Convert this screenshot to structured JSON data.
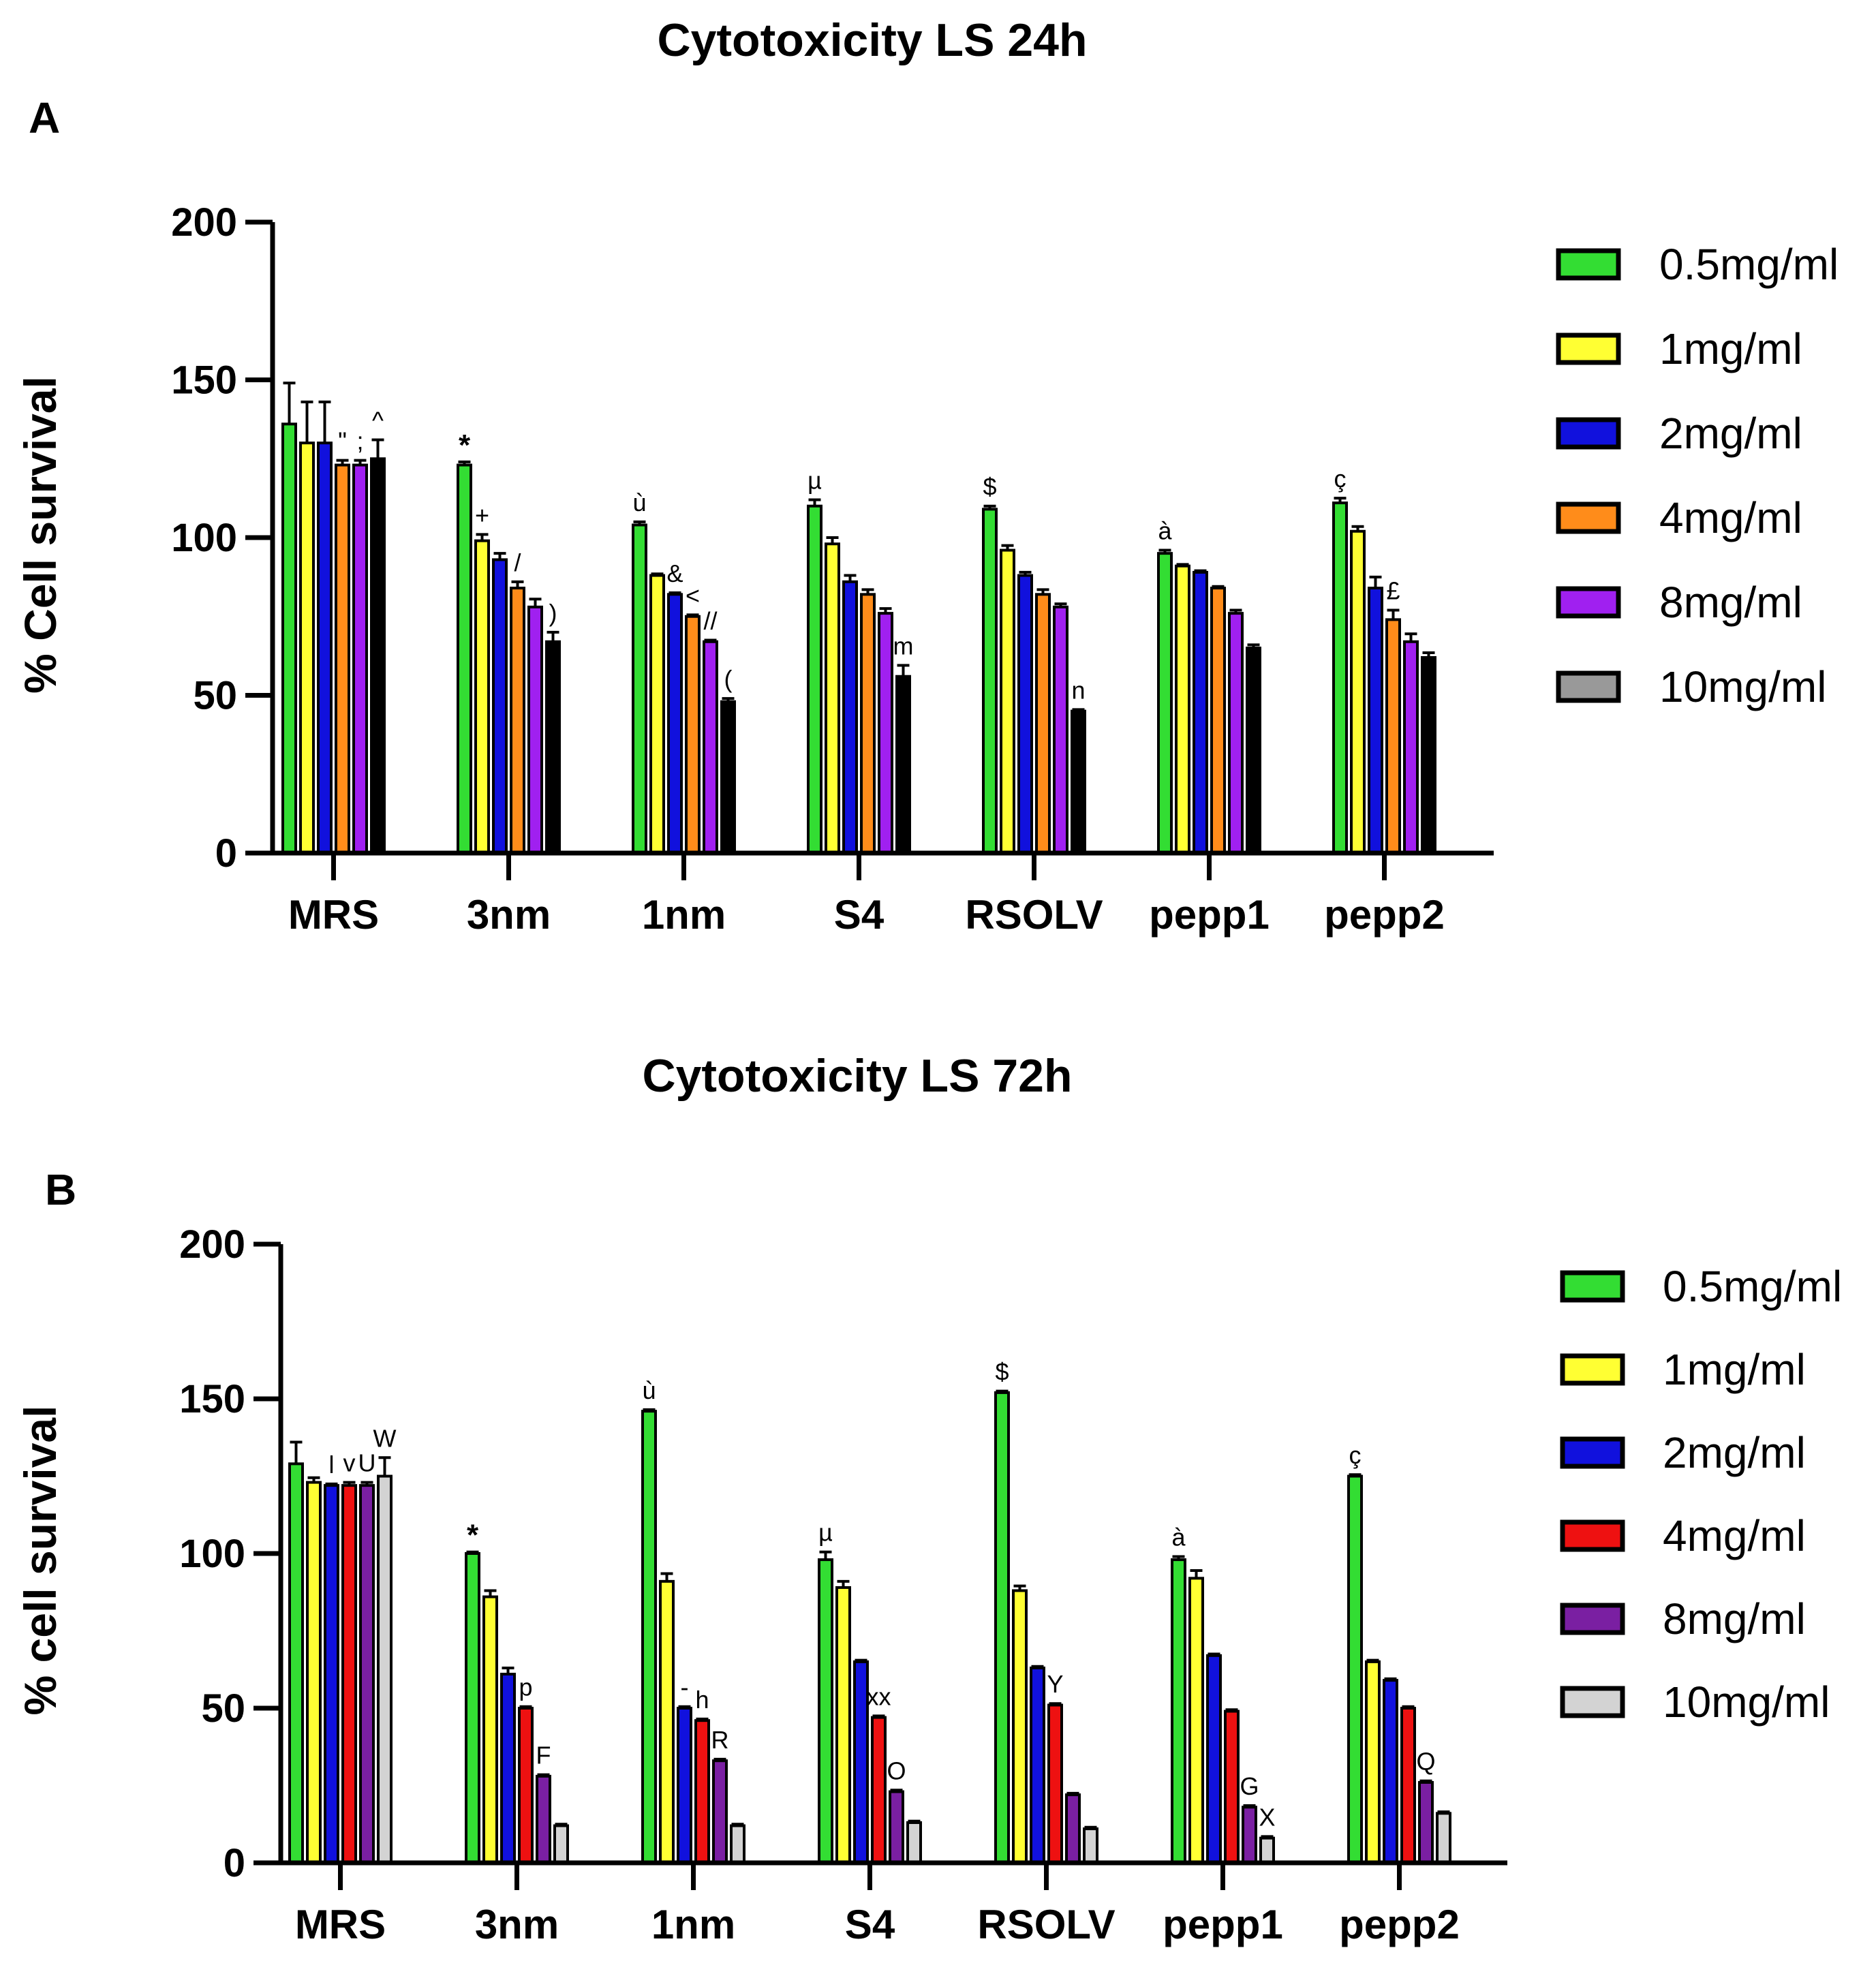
{
  "chart_data": [
    {
      "type": "bar",
      "panel_label": "A",
      "title": "Cytotoxicity LS 24h",
      "xlabel": "",
      "ylabel": "% Cell survival",
      "ylim": [
        0,
        200
      ],
      "yticks": [
        "0",
        "50",
        "100",
        "150",
        "200"
      ],
      "legend_position": "right",
      "categories": [
        "MRS",
        "3nm",
        "1nm",
        "S4",
        "RSOLV",
        "pepp1",
        "pepp2"
      ],
      "series": [
        {
          "name": "0.5mg/ml",
          "color": "#33dd33",
          "values": [
            136,
            123,
            104,
            110,
            109,
            95,
            111
          ],
          "errors": [
            13,
            1,
            1,
            2,
            1,
            1,
            1.5
          ]
        },
        {
          "name": "1mg/ml",
          "color": "#ffff33",
          "values": [
            130,
            99,
            88,
            98,
            96,
            91,
            102
          ],
          "errors": [
            13,
            2,
            0.5,
            2,
            1.5,
            0.5,
            1.5
          ]
        },
        {
          "name": "2mg/ml",
          "color": "#1111dd",
          "values": [
            130,
            93,
            82,
            86,
            88,
            89,
            84
          ],
          "errors": [
            13,
            2,
            0.5,
            2,
            1,
            0.5,
            3.5
          ]
        },
        {
          "name": "4mg/ml",
          "color": "#ff8c1a",
          "values": [
            123,
            84,
            75,
            82,
            82,
            84,
            74
          ],
          "errors": [
            1.5,
            2,
            0.5,
            1.5,
            1.5,
            0.5,
            3
          ]
        },
        {
          "name": "8mg/ml",
          "color": "#a020f0",
          "values": [
            123,
            78,
            67,
            76,
            78,
            76,
            67
          ],
          "errors": [
            1.5,
            2.5,
            0.5,
            1.5,
            1,
            1,
            2.5
          ]
        },
        {
          "name": "10mg/ml",
          "color": "#000000",
          "legend_color": "#999999",
          "values": [
            125,
            67,
            48,
            56,
            45,
            65,
            62
          ],
          "errors": [
            6,
            3,
            1,
            3.5,
            0.5,
            1,
            1.5
          ]
        }
      ],
      "annotations": [
        {
          "text": "\"",
          "category": "MRS",
          "series": 3
        },
        {
          "text": ";",
          "category": "MRS",
          "series": 4
        },
        {
          "text": "^",
          "category": "MRS",
          "series": 5
        },
        {
          "text": "*",
          "category": "3nm",
          "series": 0,
          "bold": true
        },
        {
          "text": "+",
          "category": "3nm",
          "series": 1
        },
        {
          "text": "/",
          "category": "3nm",
          "series": 3
        },
        {
          "text": ")",
          "category": "3nm",
          "series": 5
        },
        {
          "text": "ù",
          "category": "1nm",
          "series": 0
        },
        {
          "text": "&",
          "category": "1nm",
          "series": 2
        },
        {
          "text": "<",
          "category": "1nm",
          "series": 3
        },
        {
          "text": "//",
          "category": "1nm",
          "series": 4
        },
        {
          "text": "(",
          "category": "1nm",
          "series": 5
        },
        {
          "text": "µ",
          "category": "S4",
          "series": 0
        },
        {
          "text": "m",
          "category": "S4",
          "series": 5
        },
        {
          "text": "$",
          "category": "RSOLV",
          "series": 0
        },
        {
          "text": "n",
          "category": "RSOLV",
          "series": 5
        },
        {
          "text": "à",
          "category": "pepp1",
          "series": 0
        },
        {
          "text": "ç",
          "category": "pepp2",
          "series": 0
        },
        {
          "text": "£",
          "category": "pepp2",
          "series": 3
        }
      ]
    },
    {
      "type": "bar",
      "panel_label": "B",
      "title": "Cytotoxicity LS 72h",
      "xlabel": "",
      "ylabel": "% cell survival",
      "ylim": [
        0,
        200
      ],
      "yticks": [
        "0",
        "50",
        "100",
        "150",
        "200"
      ],
      "legend_position": "right",
      "categories": [
        "MRS",
        "3nm",
        "1nm",
        "S4",
        "RSOLV",
        "pepp1",
        "pepp2"
      ],
      "series": [
        {
          "name": "0.5mg/ml",
          "color": "#33dd33",
          "values": [
            129,
            100,
            146,
            98,
            152,
            98,
            125
          ],
          "errors": [
            7,
            0.5,
            0.5,
            2.5,
            0.5,
            1,
            0.5
          ]
        },
        {
          "name": "1mg/ml",
          "color": "#ffff33",
          "values": [
            123,
            86,
            91,
            89,
            88,
            92,
            65
          ],
          "errors": [
            1.5,
            2,
            2.5,
            2,
            1.5,
            2.5,
            0.5
          ]
        },
        {
          "name": "2mg/ml",
          "color": "#1111dd",
          "values": [
            122,
            61,
            50,
            65,
            63,
            67,
            59
          ],
          "errors": [
            0.5,
            2,
            0.5,
            0.5,
            0.5,
            0.5,
            0.5
          ]
        },
        {
          "name": "4mg/ml",
          "color": "#ee1111",
          "values": [
            122,
            50,
            46,
            47,
            51,
            49,
            50
          ],
          "errors": [
            1,
            0.5,
            0.5,
            0.5,
            0.5,
            0.5,
            0.5
          ]
        },
        {
          "name": "8mg/ml",
          "color": "#7a1fa2",
          "values": [
            122,
            28,
            33,
            23,
            22,
            18,
            26
          ],
          "errors": [
            1,
            0.5,
            0.5,
            0.5,
            0.5,
            0.5,
            0.5
          ]
        },
        {
          "name": "10mg/ml",
          "color": "#d3d3d3",
          "values": [
            125,
            12,
            12,
            13,
            11,
            8,
            16
          ],
          "errors": [
            6,
            0.5,
            0.5,
            0.5,
            0.5,
            0.5,
            0.5
          ]
        }
      ],
      "annotations": [
        {
          "text": "l",
          "category": "MRS",
          "series": 2
        },
        {
          "text": "v",
          "category": "MRS",
          "series": 3
        },
        {
          "text": "U",
          "category": "MRS",
          "series": 4
        },
        {
          "text": "W",
          "category": "MRS",
          "series": 5
        },
        {
          "text": "*",
          "category": "3nm",
          "series": 0,
          "bold": true
        },
        {
          "text": "p",
          "category": "3nm",
          "series": 3
        },
        {
          "text": "F",
          "category": "3nm",
          "series": 4
        },
        {
          "text": "ù",
          "category": "1nm",
          "series": 0
        },
        {
          "text": "-",
          "category": "1nm",
          "series": 2
        },
        {
          "text": "h",
          "category": "1nm",
          "series": 3
        },
        {
          "text": "R",
          "category": "1nm",
          "series": 4
        },
        {
          "text": "µ",
          "category": "S4",
          "series": 0
        },
        {
          "text": "xx",
          "category": "S4",
          "series": 3
        },
        {
          "text": "O",
          "category": "S4",
          "series": 4
        },
        {
          "text": "$",
          "category": "RSOLV",
          "series": 0
        },
        {
          "text": "Y",
          "category": "RSOLV",
          "series": 3
        },
        {
          "text": "à",
          "category": "pepp1",
          "series": 0
        },
        {
          "text": "G",
          "category": "pepp1",
          "series": 4
        },
        {
          "text": "X",
          "category": "pepp1",
          "series": 5
        },
        {
          "text": "ç",
          "category": "pepp2",
          "series": 0
        },
        {
          "text": "Q",
          "category": "pepp2",
          "series": 4
        }
      ]
    }
  ]
}
